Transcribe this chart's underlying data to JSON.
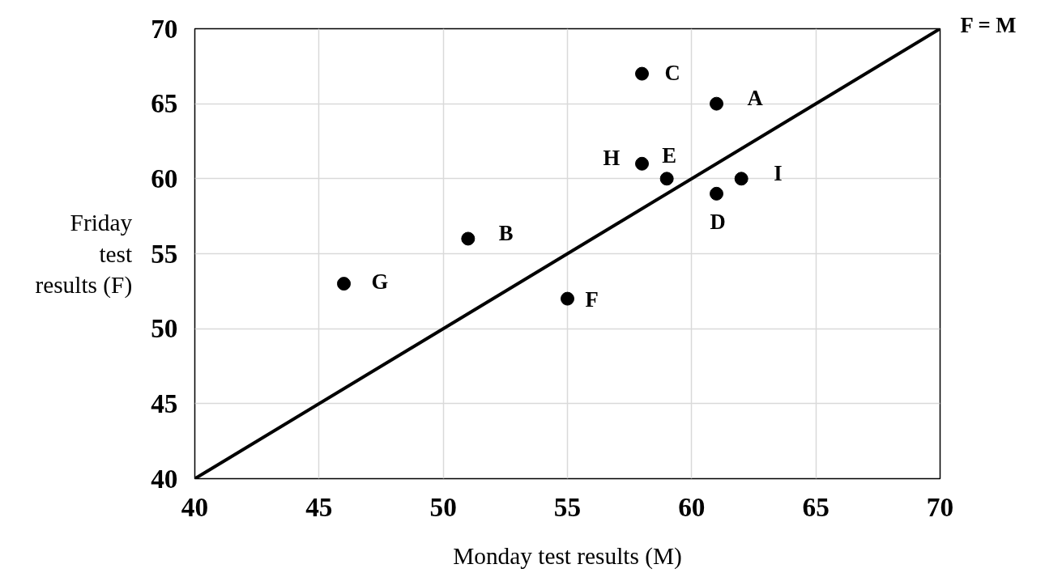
{
  "chart_data": {
    "type": "scatter",
    "xlabel": "Monday test results (M)",
    "ylabel": "Friday\ntest\nresults (F)",
    "xlim": [
      40,
      70
    ],
    "ylim": [
      40,
      70
    ],
    "xticks": [
      40,
      45,
      50,
      55,
      60,
      65,
      70
    ],
    "yticks": [
      40,
      45,
      50,
      55,
      60,
      65,
      70
    ],
    "grid": true,
    "marker": "circle",
    "series": [
      {
        "color": "#000000",
        "x": [
          61,
          51,
          58,
          61,
          59,
          55,
          46,
          58,
          62
        ],
        "values": [
          65,
          56,
          67,
          59,
          60,
          52,
          53,
          61,
          60
        ]
      },
      {
        "type": "line",
        "name": "F = M",
        "color": "#000000",
        "x": [
          40,
          70
        ],
        "values": [
          40,
          70
        ],
        "line_style": "solid",
        "marker": "none"
      }
    ],
    "annotations": [
      {
        "text": "A",
        "x": 61,
        "y": 65
      },
      {
        "text": "B",
        "x": 51,
        "y": 56
      },
      {
        "text": "C",
        "x": 58,
        "y": 67
      },
      {
        "text": "D",
        "x": 61,
        "y": 59
      },
      {
        "text": "E",
        "x": 59,
        "y": 60
      },
      {
        "text": "F",
        "x": 55,
        "y": 52
      },
      {
        "text": "G",
        "x": 46,
        "y": 53
      },
      {
        "text": "H",
        "x": 58,
        "y": 61
      },
      {
        "text": "I",
        "x": 62,
        "y": 60
      }
    ]
  }
}
